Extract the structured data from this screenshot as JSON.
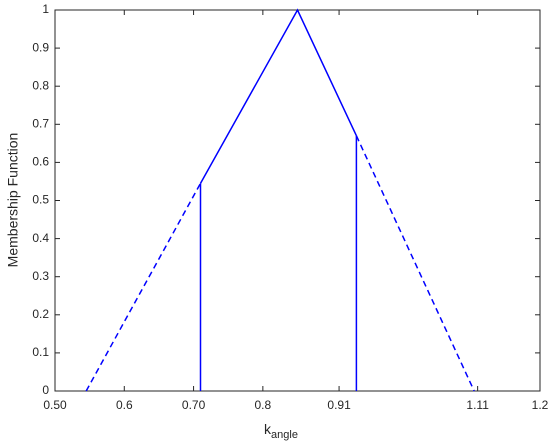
{
  "chart_data": {
    "type": "line",
    "xlabel": {
      "text": "k",
      "subscript": "angle"
    },
    "ylabel": "Membership Function",
    "xlim": [
      0.5,
      1.2
    ],
    "ylim": [
      0,
      1
    ],
    "xticks": [
      {
        "value": 0.5,
        "label": "0.50"
      },
      0.6,
      {
        "value": 0.7,
        "label": "0.70"
      },
      0.8,
      0.91,
      1.11,
      1.2
    ],
    "yticks": [
      0,
      0.1,
      0.2,
      0.3,
      0.4,
      0.5,
      0.6,
      0.7,
      0.8,
      0.9,
      1
    ],
    "grid": false,
    "series": [
      {
        "color": "#0000ff",
        "dash": "solid",
        "x": [
          0.71,
          0.85,
          0.935
        ],
        "values": [
          0.545,
          1,
          0.67
        ]
      },
      {
        "color": "#0000ff",
        "dash": "dashed",
        "x": [
          0.545,
          0.71
        ],
        "values": [
          0,
          0.545
        ]
      },
      {
        "color": "#0000ff",
        "dash": "dashed",
        "x": [
          0.935,
          1.105
        ],
        "values": [
          0.67,
          0
        ]
      },
      {
        "color": "#0000ff",
        "dash": "solid",
        "x": [
          0.71,
          0.71
        ],
        "values": [
          0,
          0.545
        ]
      },
      {
        "color": "#0000ff",
        "dash": "solid",
        "x": [
          0.935,
          0.935
        ],
        "values": [
          0,
          0.67
        ]
      }
    ]
  }
}
